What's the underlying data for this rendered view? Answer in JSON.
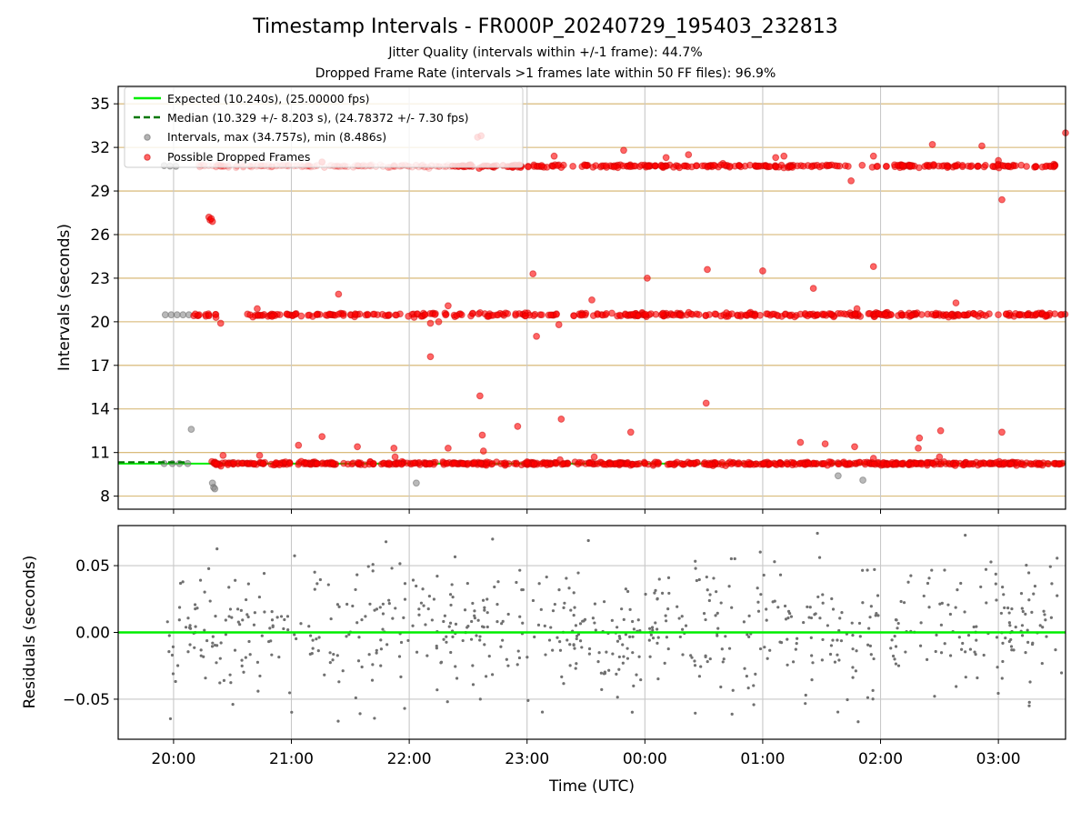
{
  "title": "Timestamp Intervals - FR000P_20240729_195403_232813",
  "subtitle_1": "Jitter Quality (intervals within +/-1 frame): 44.7%",
  "subtitle_2": "Dropped Frame Rate (intervals >1 frames late within 50 FF files): 96.9%",
  "colors": {
    "expected": "#00ee00",
    "median": "#007700",
    "intervals": "#808080",
    "dropped": "#ff0000",
    "hgrid_top": "#d4b26a",
    "grid": "#c8c8c8",
    "residual_dot": "#707070"
  },
  "chart_data": [
    {
      "type": "scatter",
      "panel": "intervals",
      "ylabel": "Intervals (seconds)",
      "ylim": [
        7.1,
        36.2
      ],
      "yticks": [
        "8",
        "11",
        "14",
        "17",
        "20",
        "23",
        "26",
        "29",
        "32",
        "35"
      ],
      "x_axis": "time (hours since 19:00 UTC; 20:00 = 1, 00:00 = 5)",
      "xlim": [
        0.53,
        8.57
      ],
      "grid": "horizontal and vertical",
      "legend_position": "upper-left",
      "legend": [
        "Expected (10.240s), (25.00000 fps)",
        "Median (10.329 +/- 8.203 s), (24.78372 +/- 7.30 fps)",
        "Intervals, max (34.757s), min (8.486s)",
        "Possible Dropped Frames"
      ],
      "expected": 10.24,
      "median": 10.329,
      "median_line_end": 1.12,
      "bands": [
        10.24,
        20.48,
        30.72
      ],
      "intervals_gray": [
        [
          0.92,
          30.75
        ],
        [
          0.97,
          30.72
        ],
        [
          1.02,
          30.7
        ],
        [
          0.93,
          20.48
        ],
        [
          0.98,
          20.48
        ],
        [
          1.03,
          20.48
        ],
        [
          1.08,
          20.48
        ],
        [
          1.13,
          20.48
        ],
        [
          0.92,
          10.24
        ],
        [
          0.99,
          10.24
        ],
        [
          1.05,
          10.24
        ],
        [
          1.12,
          10.24
        ],
        [
          1.15,
          12.6
        ],
        [
          1.33,
          8.9
        ],
        [
          1.34,
          8.6
        ],
        [
          1.35,
          8.5
        ],
        [
          3.06,
          8.9
        ],
        [
          6.64,
          9.4
        ],
        [
          6.85,
          9.1
        ],
        [
          1.5,
          10.3
        ]
      ],
      "dropped_outliers": [
        [
          1.3,
          27.2
        ],
        [
          1.31,
          27.0
        ],
        [
          1.33,
          26.9
        ],
        [
          1.32,
          27.1
        ],
        [
          1.4,
          19.9
        ],
        [
          1.42,
          10.8
        ],
        [
          1.73,
          10.8
        ],
        [
          1.71,
          20.9
        ],
        [
          2.06,
          11.5
        ],
        [
          2.26,
          12.1
        ],
        [
          2.4,
          21.9
        ],
        [
          2.56,
          11.4
        ],
        [
          2.87,
          11.3
        ],
        [
          2.88,
          10.7
        ],
        [
          3.18,
          19.9
        ],
        [
          3.18,
          17.6
        ],
        [
          3.33,
          11.3
        ],
        [
          3.33,
          21.1
        ],
        [
          3.6,
          14.9
        ],
        [
          3.62,
          12.2
        ],
        [
          3.63,
          11.1
        ],
        [
          3.92,
          12.8
        ],
        [
          4.05,
          23.3
        ],
        [
          4.08,
          19.0
        ],
        [
          4.27,
          19.8
        ],
        [
          4.29,
          13.3
        ],
        [
          4.28,
          10.5
        ],
        [
          4.55,
          21.5
        ],
        [
          4.57,
          10.7
        ],
        [
          4.88,
          12.4
        ],
        [
          5.02,
          23.0
        ],
        [
          5.53,
          23.6
        ],
        [
          5.52,
          14.4
        ],
        [
          6.0,
          23.5
        ],
        [
          6.32,
          11.7
        ],
        [
          6.43,
          22.3
        ],
        [
          6.53,
          11.6
        ],
        [
          6.78,
          11.4
        ],
        [
          6.8,
          20.9
        ],
        [
          6.94,
          23.8
        ],
        [
          6.94,
          10.6
        ],
        [
          7.32,
          11.3
        ],
        [
          7.33,
          12.0
        ],
        [
          7.51,
          12.5
        ],
        [
          7.5,
          10.7
        ],
        [
          7.64,
          21.3
        ],
        [
          8.03,
          12.4
        ],
        [
          4.23,
          31.4
        ],
        [
          4.82,
          31.8
        ],
        [
          5.18,
          31.3
        ],
        [
          5.37,
          31.5
        ],
        [
          6.11,
          31.3
        ],
        [
          6.18,
          31.4
        ],
        [
          6.75,
          29.7
        ],
        [
          6.94,
          31.4
        ],
        [
          7.44,
          32.2
        ],
        [
          7.86,
          32.1
        ],
        [
          8.0,
          31.1
        ],
        [
          8.03,
          28.4
        ],
        [
          8.57,
          33.0
        ],
        [
          3.58,
          32.7
        ],
        [
          3.61,
          32.8
        ],
        [
          3.25,
          20.0
        ],
        [
          1.36,
          20.3
        ],
        [
          2.26,
          31.0
        ]
      ],
      "faded_dropped_band_end": 3.35
    },
    {
      "type": "scatter",
      "panel": "residuals",
      "ylabel": "Residuals (seconds)",
      "xlabel": "Time (UTC)",
      "ylim": [
        -0.08,
        0.08
      ],
      "yticks": [
        "−0.05",
        "0.00",
        "0.05"
      ],
      "ytick_values": [
        -0.05,
        0.0,
        0.05
      ],
      "xticks": [
        "20:00",
        "21:00",
        "22:00",
        "23:00",
        "00:00",
        "01:00",
        "02:00",
        "03:00"
      ],
      "xtick_values": [
        1,
        2,
        3,
        4,
        5,
        6,
        7,
        8
      ],
      "xlim": [
        0.53,
        8.57
      ],
      "zero_line": 0.0,
      "residual_spread": 0.025,
      "residual_count": 700,
      "grid": "horizontal and vertical"
    }
  ]
}
